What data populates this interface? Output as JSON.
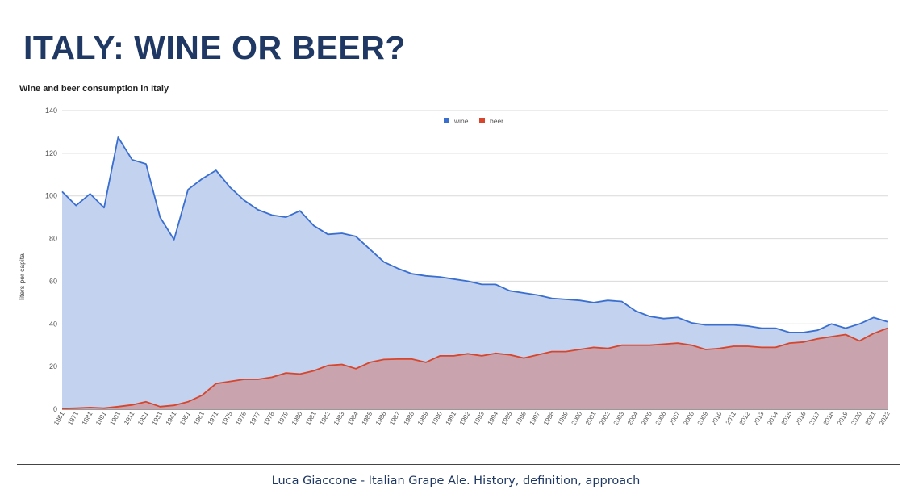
{
  "slide": {
    "title": "ITALY: WINE OR BEER?",
    "footer": "Luca Giaccone - Italian Grape Ale.  History, definition, approach"
  },
  "chart_data": {
    "type": "area",
    "title": "Wine and beer consumption in Italy",
    "xlabel": "",
    "ylabel": "liters per capita",
    "ylim": [
      0,
      140
    ],
    "yticks": [
      0,
      20,
      40,
      60,
      80,
      100,
      120,
      140
    ],
    "grid": true,
    "legend_position": "top",
    "categories": [
      "1861",
      "1871",
      "1881",
      "1891",
      "1901",
      "1911",
      "1921",
      "1931",
      "1941",
      "1951",
      "1961",
      "1971",
      "1975",
      "1976",
      "1977",
      "1978",
      "1979",
      "1980",
      "1981",
      "1982",
      "1983",
      "1984",
      "1985",
      "1986",
      "1987",
      "1988",
      "1989",
      "1990",
      "1991",
      "1992",
      "1993",
      "1994",
      "1995",
      "1996",
      "1997",
      "1998",
      "1999",
      "2000",
      "2001",
      "2002",
      "2003",
      "2004",
      "2005",
      "2006",
      "2007",
      "2008",
      "2009",
      "2010",
      "2011",
      "2012",
      "2013",
      "2014",
      "2015",
      "2016",
      "2017",
      "2018",
      "2019",
      "2020",
      "2021",
      "2022"
    ],
    "series": [
      {
        "name": "wine",
        "color": "#3a6fd0",
        "fill": "#c2d2ef",
        "values": [
          102,
          95.5,
          101,
          94.5,
          127.5,
          117,
          115,
          90,
          79.5,
          103,
          108,
          112,
          104,
          98,
          93.5,
          91,
          90,
          93,
          86,
          82,
          82.5,
          81,
          75,
          69,
          66,
          63.5,
          62.5,
          62,
          61,
          60,
          58.5,
          58.5,
          55.5,
          54.5,
          53.5,
          52,
          51.5,
          51,
          50,
          51,
          50.5,
          46,
          43.5,
          42.5,
          43,
          40.5,
          39.5,
          39.5,
          39.5,
          39,
          38,
          38,
          36,
          36,
          37,
          40,
          38,
          40,
          43,
          41
        ]
      },
      {
        "name": "beer",
        "color": "#d6452c",
        "fill": "#c9a3ad",
        "values": [
          0.3,
          0.5,
          0.8,
          0.5,
          1.2,
          2,
          3.5,
          1.2,
          1.8,
          3.5,
          6.5,
          12,
          13,
          14,
          14,
          15,
          17,
          16.5,
          18,
          20.5,
          21,
          19,
          22,
          23.3,
          23.5,
          23.5,
          22,
          25,
          25,
          26,
          25,
          26.2,
          25.5,
          24,
          25.5,
          27,
          27,
          28,
          29,
          28.5,
          30,
          30,
          30,
          30.5,
          31,
          30,
          28,
          28.5,
          29.5,
          29.5,
          29,
          29,
          31,
          31.5,
          33,
          34,
          35,
          32,
          35.5,
          38
        ]
      }
    ]
  }
}
